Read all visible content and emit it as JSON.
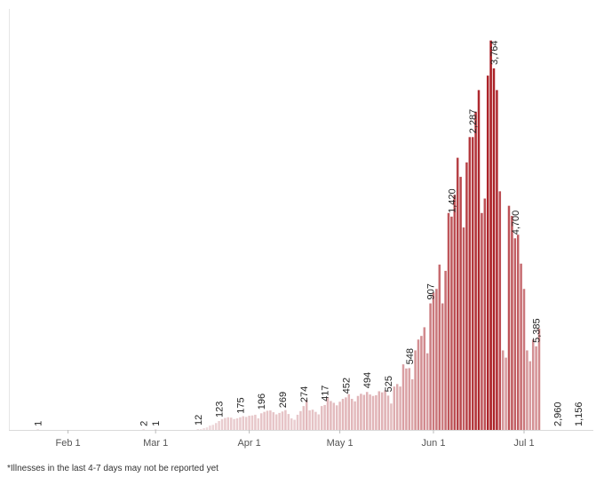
{
  "chart_data": {
    "type": "bar",
    "x_axis": "dates",
    "start_date": "2020-01-22",
    "end_date": "2020-07-16",
    "ylim": [
      0,
      5700
    ],
    "grid": false,
    "tick_labels": [
      {
        "label": "Feb 1",
        "date": "2020-02-01"
      },
      {
        "label": "Mar 1",
        "date": "2020-03-01"
      },
      {
        "label": "Apr 1",
        "date": "2020-04-01"
      },
      {
        "label": "May 1",
        "date": "2020-05-01"
      },
      {
        "label": "Jun 1",
        "date": "2020-06-01"
      },
      {
        "label": "Jul 1",
        "date": "2020-07-01"
      }
    ],
    "data_labels": [
      {
        "date": "2020-01-22",
        "text": "1"
      },
      {
        "date": "2020-02-26",
        "text": "2"
      },
      {
        "date": "2020-03-01",
        "text": "1"
      },
      {
        "date": "2020-03-15",
        "text": "12"
      },
      {
        "date": "2020-03-22",
        "text": "123"
      },
      {
        "date": "2020-03-29",
        "text": "175"
      },
      {
        "date": "2020-04-05",
        "text": "196"
      },
      {
        "date": "2020-04-12",
        "text": "269"
      },
      {
        "date": "2020-04-19",
        "text": "274"
      },
      {
        "date": "2020-04-26",
        "text": "417"
      },
      {
        "date": "2020-05-03",
        "text": "452"
      },
      {
        "date": "2020-05-10",
        "text": "494"
      },
      {
        "date": "2020-05-17",
        "text": "525"
      },
      {
        "date": "2020-05-24",
        "text": "548"
      },
      {
        "date": "2020-05-31",
        "text": "907"
      },
      {
        "date": "2020-06-07",
        "text": "1,420"
      },
      {
        "date": "2020-06-14",
        "text": "2,287"
      },
      {
        "date": "2020-06-21",
        "text": "3,764"
      },
      {
        "date": "2020-06-28",
        "text": "4,700"
      },
      {
        "date": "2020-07-05",
        "text": "5,385"
      },
      {
        "date": "2020-07-12",
        "text": "2,960"
      },
      {
        "date": "2020-07-19",
        "text": "1,156"
      }
    ],
    "color_scale": {
      "low": "#f2e4e6",
      "high": "#a8191f"
    },
    "values": [
      1,
      0,
      0,
      0,
      0,
      0,
      0,
      0,
      0,
      0,
      0,
      0,
      0,
      0,
      0,
      0,
      0,
      0,
      0,
      0,
      0,
      0,
      0,
      0,
      0,
      0,
      0,
      0,
      0,
      0,
      0,
      0,
      0,
      0,
      0,
      2,
      0,
      0,
      0,
      1,
      0,
      0,
      0,
      0,
      0,
      0,
      0,
      0,
      0,
      0,
      0,
      0,
      0,
      12,
      8,
      25,
      35,
      60,
      70,
      95,
      123,
      150,
      165,
      175,
      170,
      150,
      160,
      175,
      190,
      180,
      196,
      200,
      210,
      160,
      230,
      250,
      265,
      269,
      245,
      215,
      235,
      255,
      274,
      220,
      160,
      140,
      210,
      260,
      330,
      417,
      270,
      280,
      250,
      215,
      330,
      345,
      452,
      400,
      375,
      340,
      390,
      430,
      450,
      494,
      430,
      395,
      470,
      500,
      485,
      525,
      490,
      470,
      480,
      535,
      520,
      548,
      475,
      365,
      600,
      635,
      600,
      907,
      850,
      855,
      700,
      1100,
      1250,
      1300,
      1420,
      1060,
      1750,
      1900,
      1950,
      2287,
      1750,
      2200,
      3000,
      2950,
      3250,
      3764,
      3500,
      2800,
      3700,
      4050,
      4050,
      4400,
      4700,
      3000,
      3200,
      4900,
      5385,
      5000,
      4700,
      3300,
      1100,
      1000,
      3100,
      2960,
      2650,
      2700,
      2300,
      1950,
      1100,
      950,
      1250,
      1156,
      1400
    ]
  },
  "footnote": "*Illnesses in the last 4-7 days may not be reported yet"
}
